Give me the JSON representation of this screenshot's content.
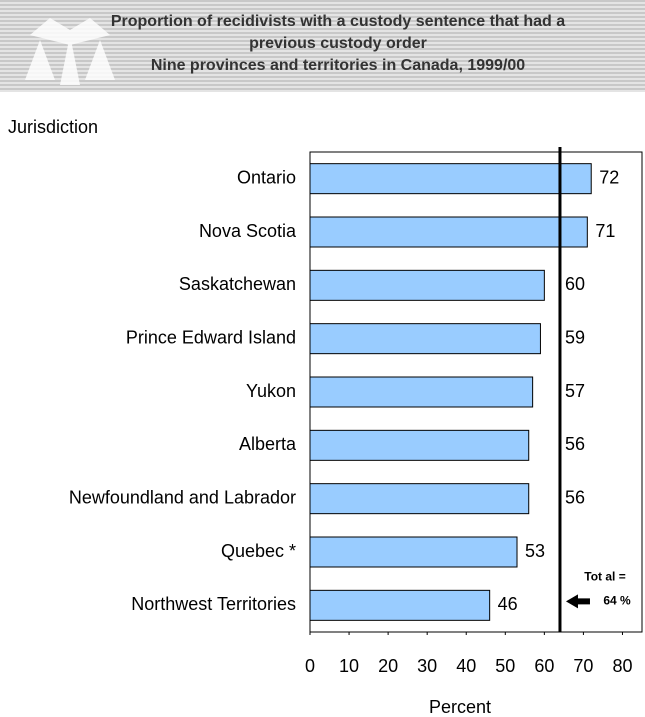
{
  "chart_data": {
    "type": "bar",
    "orientation": "horizontal",
    "title": [
      "Proportion of recidivists with a custody sentence that had a",
      "previous custody order"
    ],
    "subtitle": "Nine provinces and territories in Canada, 1999/00",
    "y_label": "Jurisdiction",
    "x_label": "Percent",
    "categories": [
      "Ontario",
      "Nova Scotia",
      "Saskatchewan",
      "Prince Edward Island",
      "Yukon",
      "Alberta",
      "Newfoundland and Labrador",
      "Quebec *",
      "Northwest Territories"
    ],
    "values": [
      72,
      71,
      60,
      59,
      57,
      56,
      56,
      53,
      46
    ],
    "color": "#99ccff",
    "xlim": [
      0,
      85
    ],
    "xticks": [
      0,
      10,
      20,
      30,
      40,
      50,
      60,
      70,
      80
    ],
    "reference": {
      "value": 64,
      "label": [
        "Tot al =",
        "64 %"
      ]
    }
  }
}
